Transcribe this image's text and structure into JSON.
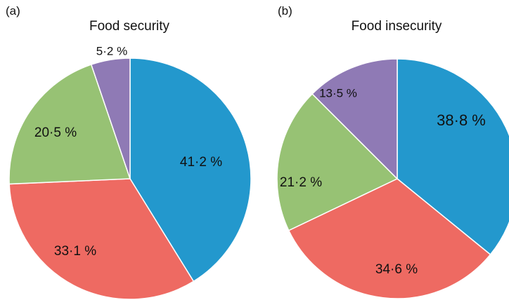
{
  "panel_labels": [
    "(a)",
    "(b)"
  ],
  "colors": {
    "blue": "#2398cd",
    "red": "#ee6a62",
    "green": "#97c274",
    "purple": "#8f7ab5"
  },
  "chart_data": [
    {
      "type": "pie",
      "panel": "(a)",
      "title": "Food security",
      "values": [
        41.2,
        33.1,
        20.5,
        5.2
      ],
      "labels": [
        "41·2 %",
        "33·1 %",
        "20·5 %",
        "5·2 %"
      ],
      "colors": [
        "#2398cd",
        "#ee6a62",
        "#97c274",
        "#8f7ab5"
      ],
      "start": "12 o'clock",
      "direction": "clockwise"
    },
    {
      "type": "pie",
      "panel": "(b)",
      "title": "Food insecurity",
      "values": [
        38.8,
        34.6,
        21.2,
        13.5
      ],
      "labels": [
        "38·8 %",
        "34·6 %",
        "21·2 %",
        "13·5 %"
      ],
      "colors": [
        "#2398cd",
        "#ee6a62",
        "#97c274",
        "#8f7ab5"
      ],
      "start": "12 o'clock",
      "direction": "clockwise"
    }
  ]
}
